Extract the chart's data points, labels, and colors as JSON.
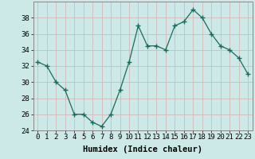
{
  "x": [
    0,
    1,
    2,
    3,
    4,
    5,
    6,
    7,
    8,
    9,
    10,
    11,
    12,
    13,
    14,
    15,
    16,
    17,
    18,
    19,
    20,
    21,
    22,
    23
  ],
  "y": [
    32.5,
    32,
    30,
    29,
    26,
    26,
    25,
    24.5,
    26,
    29,
    32.5,
    37,
    34.5,
    34.5,
    34,
    37,
    37.5,
    39,
    38,
    36,
    34.5,
    34,
    33,
    31
  ],
  "line_color": "#1a6b5a",
  "marker": ".",
  "marker_size": 5,
  "bg_color": "#cce9e8",
  "grid_color": "#b8d8d8",
  "plot_bg_color": "#cce9e8",
  "xlabel": "Humidex (Indice chaleur)",
  "ylim": [
    24,
    40
  ],
  "xlim": [
    -0.5,
    23.5
  ],
  "yticks": [
    24,
    26,
    28,
    30,
    32,
    34,
    36,
    38
  ],
  "xticks": [
    0,
    1,
    2,
    3,
    4,
    5,
    6,
    7,
    8,
    9,
    10,
    11,
    12,
    13,
    14,
    15,
    16,
    17,
    18,
    19,
    20,
    21,
    22,
    23
  ],
  "xlabel_fontsize": 7.5,
  "tick_fontsize": 6.5,
  "spine_color": "#888888"
}
